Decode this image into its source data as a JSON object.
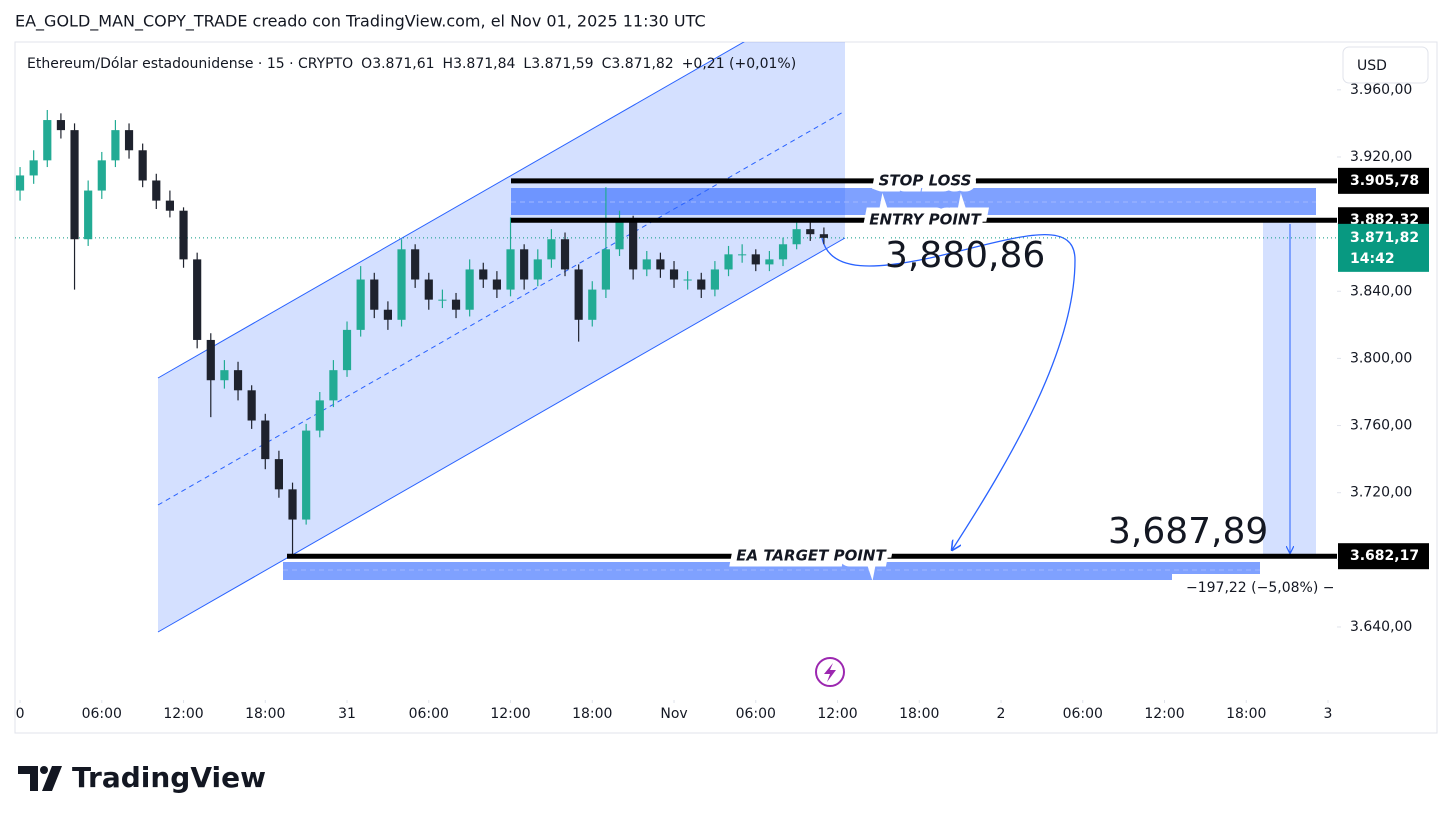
{
  "header": {
    "attribution": "EA_GOLD_MAN_COPY_TRADE creado con TradingView.com, el Nov 01, 2025 11:30 UTC",
    "symbol": "Ethereum/Dólar estadounidense · 15 · CRYPTO",
    "ohlc_letters": [
      "O",
      "H",
      "L",
      "C"
    ],
    "ohlc_values": [
      "3.871,61",
      "3.871,84",
      "3.871,59",
      "3.871,82"
    ],
    "change": "+0,21 (+0,01%)"
  },
  "currency_button": "USD",
  "footer": {
    "brand": "TradingView"
  },
  "chart_data": {
    "type": "candlestick",
    "x": [
      0,
      1,
      2,
      3,
      4,
      5,
      6,
      7,
      8,
      9,
      10,
      11,
      12,
      13,
      14,
      15,
      16,
      17,
      18,
      19,
      20,
      21,
      22,
      23,
      24,
      25,
      26,
      27,
      28,
      29,
      30,
      31,
      32,
      33,
      34,
      35,
      36,
      37,
      38,
      39,
      40,
      41,
      42,
      43,
      44,
      45,
      46,
      47,
      48,
      49,
      50,
      51,
      52,
      53,
      54,
      55,
      56,
      57,
      58,
      59
    ],
    "open": [
      3900,
      3909,
      3918,
      3942,
      3936,
      3871,
      3900,
      3918,
      3936,
      3924,
      3906,
      3894,
      3888,
      3859,
      3811,
      3787,
      3793,
      3781,
      3763,
      3740,
      3722,
      3704,
      3757,
      3775,
      3793,
      3817,
      3847,
      3829,
      3823,
      3865,
      3847,
      3835,
      3835,
      3829,
      3853,
      3847,
      3841,
      3865,
      3847,
      3859,
      3871,
      3853,
      3823,
      3841,
      3865,
      3882,
      3853,
      3859,
      3853,
      3847,
      3847,
      3841,
      3853,
      3862,
      3862,
      3856,
      3859,
      3868,
      3877,
      3874
    ],
    "high": [
      3914,
      3924,
      3948,
      3946,
      3940,
      3906,
      3923,
      3942,
      3940,
      3928,
      3910,
      3900,
      3890,
      3863,
      3815,
      3799,
      3798,
      3784,
      3767,
      3745,
      3726,
      3761,
      3780,
      3799,
      3822,
      3855,
      3851,
      3834,
      3871,
      3868,
      3851,
      3841,
      3839,
      3859,
      3857,
      3852,
      3884,
      3868,
      3865,
      3877,
      3875,
      3856,
      3846,
      3902,
      3888,
      3885,
      3864,
      3863,
      3858,
      3852,
      3851,
      3858,
      3867,
      3868,
      3865,
      3864,
      3872,
      3882,
      3881,
      3878
    ],
    "low": [
      3894,
      3904,
      3914,
      3931,
      3841,
      3867,
      3895,
      3914,
      3919,
      3902,
      3889,
      3884,
      3854,
      3806,
      3765,
      3782,
      3775,
      3758,
      3734,
      3717,
      3683,
      3701,
      3753,
      3771,
      3789,
      3813,
      3824,
      3817,
      3819,
      3842,
      3829,
      3830,
      3824,
      3825,
      3842,
      3836,
      3837,
      3841,
      3843,
      3854,
      3849,
      3810,
      3819,
      3836,
      3861,
      3847,
      3849,
      3848,
      3842,
      3841,
      3836,
      3837,
      3849,
      3857,
      3852,
      3852,
      3855,
      3865,
      3870,
      3868
    ],
    "close": [
      3909,
      3918,
      3942,
      3936,
      3871,
      3900,
      3918,
      3936,
      3924,
      3906,
      3894,
      3888,
      3859,
      3811,
      3787,
      3793,
      3781,
      3763,
      3740,
      3722,
      3704,
      3757,
      3775,
      3793,
      3817,
      3847,
      3829,
      3823,
      3865,
      3847,
      3835,
      3835,
      3829,
      3853,
      3847,
      3841,
      3865,
      3847,
      3859,
      3871,
      3853,
      3823,
      3841,
      3865,
      3882,
      3853,
      3859,
      3853,
      3847,
      3847,
      3841,
      3853,
      3862,
      3862,
      3856,
      3859,
      3868,
      3877,
      3874,
      3871.82
    ],
    "up_color": "#22ab94",
    "down_color": "#1e222d",
    "xlim": [
      -0.37,
      96.66
    ],
    "xticks": [
      {
        "value": 0,
        "label": "0"
      },
      {
        "value": 6,
        "label": "06:00"
      },
      {
        "value": 12,
        "label": "12:00"
      },
      {
        "value": 18,
        "label": "18:00"
      },
      {
        "value": 24,
        "label": "31"
      },
      {
        "value": 30,
        "label": "06:00"
      },
      {
        "value": 36,
        "label": "12:00"
      },
      {
        "value": 42,
        "label": "18:00"
      },
      {
        "value": 48,
        "label": "Nov"
      },
      {
        "value": 54,
        "label": "06:00"
      },
      {
        "value": 60,
        "label": "12:00"
      },
      {
        "value": 66,
        "label": "18:00"
      },
      {
        "value": 72,
        "label": "2"
      },
      {
        "value": 78,
        "label": "06:00"
      },
      {
        "value": 84,
        "label": "12:00"
      },
      {
        "value": 90,
        "label": "18:00"
      },
      {
        "value": 96,
        "label": "3"
      }
    ],
    "ylim": [
      3596.5,
      3988.5
    ],
    "yticks": [
      {
        "value": 3640,
        "label": "3.640,00"
      },
      {
        "value": 3680,
        "label": "3.680,00"
      },
      {
        "value": 3720,
        "label": "3.720,00"
      },
      {
        "value": 3760,
        "label": "3.760,00"
      },
      {
        "value": 3800,
        "label": "3.800,00"
      },
      {
        "value": 3840,
        "label": "3.840,00"
      },
      {
        "value": 3880,
        "label": "3.880,00"
      },
      {
        "value": 3920,
        "label": "3.920,00"
      },
      {
        "value": 3960,
        "label": "3.960,00"
      }
    ],
    "grid": false,
    "levels": {
      "names": [
        "STOP LOSS",
        "ENTRY POINT",
        "EA TARGET POINT"
      ],
      "values": [
        3905.78,
        3882.32,
        3682.17
      ],
      "value_labels": [
        "3.905,78",
        "3.882,32",
        "3.682,17"
      ]
    },
    "last_price": {
      "value": 3871.82,
      "label": "3.871,82",
      "countdown": "14:42"
    },
    "annotations": [
      "3,880,86",
      "3,687,89"
    ],
    "measurement": "−197,22 (−5,08%) −"
  }
}
